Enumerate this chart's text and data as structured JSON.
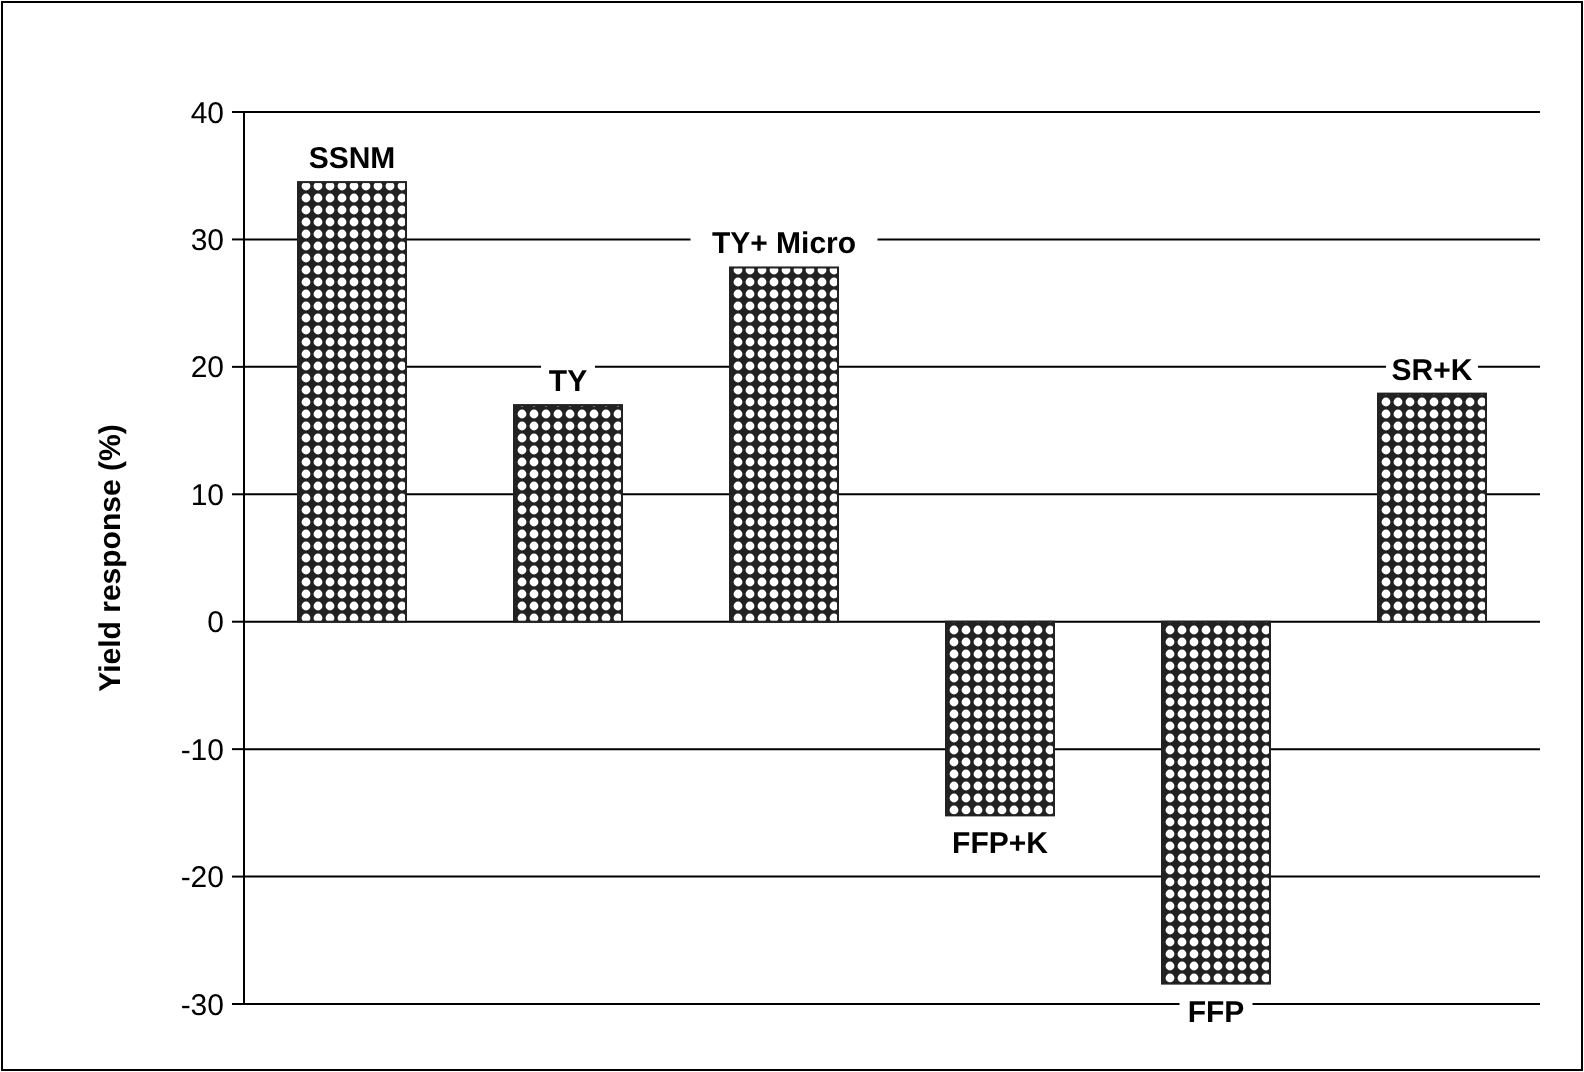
{
  "chart_data": {
    "type": "bar",
    "ylabel": "Yield response (%)",
    "categories": [
      "SSNM",
      "TY",
      "TY+ Micro",
      "FFP+K",
      "FFP",
      "SR+K"
    ],
    "values": [
      34.5,
      17,
      27.8,
      -15.2,
      -28.4,
      17.9
    ],
    "color": "#222222",
    "ylim": [
      -30,
      40
    ],
    "yticks": [
      -30,
      -20,
      -10,
      0,
      10,
      20,
      30,
      40
    ],
    "grid": "y"
  }
}
